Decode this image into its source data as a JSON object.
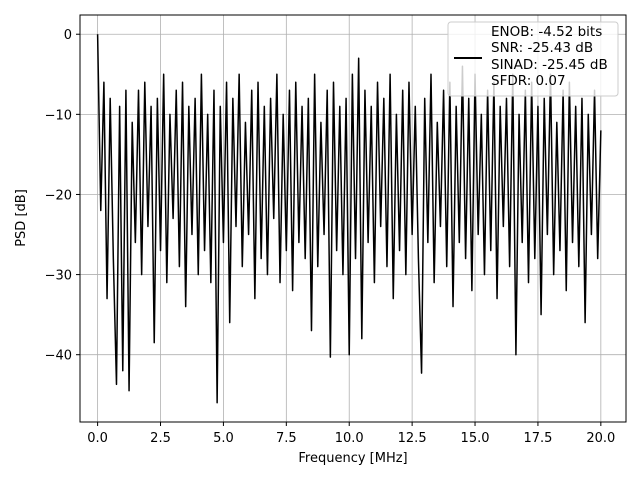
{
  "chart_data": {
    "type": "line",
    "xlabel": "Frequency [MHz]",
    "ylabel": "PSD [dB]",
    "x": [
      0,
      0.125,
      0.25,
      0.375,
      0.5,
      0.625,
      0.75,
      0.875,
      1,
      1.125,
      1.25,
      1.375,
      1.5,
      1.625,
      1.75,
      1.875,
      2,
      2.125,
      2.25,
      2.375,
      2.5,
      2.625,
      2.75,
      2.875,
      3,
      3.125,
      3.25,
      3.375,
      3.5,
      3.625,
      3.75,
      3.875,
      4,
      4.125,
      4.25,
      4.375,
      4.5,
      4.625,
      4.75,
      4.875,
      5,
      5.125,
      5.25,
      5.375,
      5.5,
      5.625,
      5.75,
      5.875,
      6,
      6.125,
      6.25,
      6.375,
      6.5,
      6.625,
      6.75,
      6.875,
      7,
      7.125,
      7.25,
      7.375,
      7.5,
      7.625,
      7.75,
      7.875,
      8,
      8.125,
      8.25,
      8.375,
      8.5,
      8.625,
      8.75,
      8.875,
      9,
      9.125,
      9.25,
      9.375,
      9.5,
      9.625,
      9.75,
      9.875,
      10,
      10.125,
      10.25,
      10.375,
      10.5,
      10.625,
      10.75,
      10.875,
      11,
      11.125,
      11.25,
      11.375,
      11.5,
      11.625,
      11.75,
      11.875,
      12,
      12.125,
      12.25,
      12.375,
      12.5,
      12.625,
      12.75,
      12.875,
      13,
      13.125,
      13.25,
      13.375,
      13.5,
      13.625,
      13.75,
      13.875,
      14,
      14.125,
      14.25,
      14.375,
      14.5,
      14.625,
      14.75,
      14.875,
      15,
      15.125,
      15.25,
      15.375,
      15.5,
      15.625,
      15.75,
      15.875,
      16,
      16.125,
      16.25,
      16.375,
      16.5,
      16.625,
      16.75,
      16.875,
      17,
      17.125,
      17.25,
      17.375,
      17.5,
      17.625,
      17.75,
      17.875,
      18,
      18.125,
      18.25,
      18.375,
      18.5,
      18.625,
      18.75,
      18.875,
      19,
      19.125,
      19.25,
      19.375,
      19.5,
      19.625,
      19.75,
      19.875,
      20
    ],
    "series": [
      {
        "name": "ENOB: -4.52 bits\nSNR: -25.43 dB\nSINAD: -25.45 dB\nSFDR: 0.07",
        "color": "#000000",
        "values": [
          0,
          -22,
          -6,
          -33,
          -8,
          -28,
          -43.7,
          -9,
          -42,
          -7,
          -44.5,
          -11,
          -26,
          -7,
          -30,
          -6,
          -24,
          -9,
          -38.5,
          -8,
          -27,
          -5,
          -31,
          -10,
          -23,
          -7,
          -29,
          -6,
          -34,
          -9,
          -25,
          -8,
          -30,
          -5,
          -27,
          -10,
          -31,
          -7,
          -46,
          -9,
          -26,
          -6,
          -36,
          -8,
          -24,
          -5,
          -29,
          -11,
          -25,
          -7,
          -33,
          -6,
          -28,
          -9,
          -30,
          -8,
          -23,
          -5,
          -31,
          -10,
          -27,
          -7,
          -32,
          -6,
          -26,
          -9,
          -28,
          -8,
          -37,
          -5,
          -29,
          -11,
          -25,
          -7,
          -40.3,
          -6,
          -27,
          -9,
          -30,
          -8,
          -40,
          -5,
          -28,
          -3,
          -38,
          -7,
          -26,
          -9,
          -31,
          -6,
          -24,
          -8,
          -29,
          -5,
          -33,
          -10,
          -27,
          -7,
          -30,
          -6,
          -25,
          -9,
          -28,
          -42.3,
          -8,
          -26,
          -5,
          -31,
          -11,
          -24,
          -7,
          -29,
          -6,
          -34,
          -9,
          -26,
          -4,
          -28,
          -8,
          -32,
          -5,
          -25,
          -10,
          -30,
          -7,
          -27,
          -6,
          -33,
          -9,
          -24,
          -8,
          -29,
          -5,
          -40,
          -10,
          -26,
          -7,
          -31,
          -6,
          -28,
          -9,
          -35,
          -8,
          -25,
          -5,
          -30,
          -11,
          -27,
          -7,
          -32,
          -6,
          -26,
          -9,
          -29,
          -8,
          -36,
          -10,
          -25,
          -7,
          -28,
          -12
        ]
      }
    ],
    "xlim": [
      -0.7,
      21.0
    ],
    "ylim": [
      -48.4,
      2.4
    ],
    "xticks": [
      {
        "value": 0,
        "label": "0.0"
      },
      {
        "value": 2.5,
        "label": "2.5"
      },
      {
        "value": 5,
        "label": "5.0"
      },
      {
        "value": 7.5,
        "label": "7.5"
      },
      {
        "value": 10,
        "label": "10.0"
      },
      {
        "value": 12.5,
        "label": "12.5"
      },
      {
        "value": 15,
        "label": "15.0"
      },
      {
        "value": 17.5,
        "label": "17.5"
      },
      {
        "value": 20,
        "label": "20.0"
      }
    ],
    "yticks": [
      {
        "value": -40,
        "label": "−40"
      },
      {
        "value": -30,
        "label": "−30"
      },
      {
        "value": -20,
        "label": "−20"
      },
      {
        "value": -10,
        "label": "−10"
      },
      0
    ],
    "grid": true,
    "legend": "upper right"
  }
}
